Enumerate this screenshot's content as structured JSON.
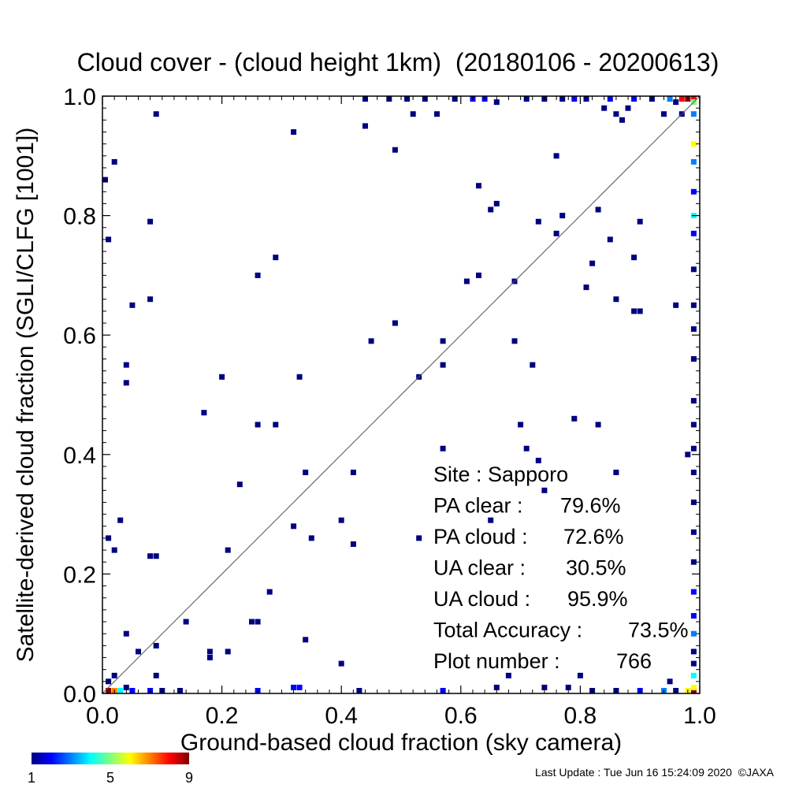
{
  "chart_data": {
    "type": "heatmap",
    "title": "Cloud cover - (cloud height 1km)  (20180106 - 20200613)",
    "xlabel": "Ground-based cloud fraction (sky camera)",
    "ylabel": "Satellite-derived cloud fraction (SGLI/CLFG [1001])",
    "xlim": [
      0,
      1
    ],
    "ylim": [
      0,
      1
    ],
    "x_ticks": [
      "0.0",
      "0.2",
      "0.4",
      "0.6",
      "0.8",
      "1.0"
    ],
    "y_ticks": [
      "0.0",
      "0.2",
      "0.4",
      "0.6",
      "0.8",
      "1.0"
    ],
    "grid": false,
    "diagonal_line": true,
    "colorbar": {
      "min": 1,
      "max": 9,
      "tick_labels": [
        "1",
        "5",
        "9"
      ],
      "colors": [
        "#000080",
        "#0000ff",
        "#0080ff",
        "#00ffff",
        "#80ff80",
        "#ffff00",
        "#ff8000",
        "#ff0000",
        "#800000"
      ]
    },
    "stats": [
      {
        "label": "Site : Sapporo",
        "value": ""
      },
      {
        "label": "PA clear :",
        "value": "79.6%"
      },
      {
        "label": "PA cloud :",
        "value": "72.6%"
      },
      {
        "label": "UA clear :",
        "value": "30.5%"
      },
      {
        "label": "UA cloud :",
        "value": "95.9%"
      },
      {
        "label": "Total Accuracy :",
        "value": "73.5%"
      },
      {
        "label": "Plot number :",
        "value": "766"
      }
    ],
    "cells": [
      [
        0.0,
        0.86,
        1
      ],
      [
        0.01,
        0.76,
        1
      ],
      [
        0.02,
        0.89,
        1
      ],
      [
        0.09,
        0.97,
        1
      ],
      [
        0.08,
        0.79,
        1
      ],
      [
        0.08,
        0.66,
        1
      ],
      [
        0.05,
        0.65,
        1
      ],
      [
        0.04,
        0.55,
        1
      ],
      [
        0.04,
        0.52,
        1
      ],
      [
        0.17,
        0.47,
        1
      ],
      [
        0.2,
        0.53,
        1
      ],
      [
        0.26,
        0.7,
        1
      ],
      [
        0.29,
        0.73,
        1
      ],
      [
        0.26,
        0.45,
        1
      ],
      [
        0.29,
        0.45,
        1
      ],
      [
        0.33,
        0.53,
        1
      ],
      [
        0.32,
        0.94,
        1
      ],
      [
        0.44,
        0.95,
        1
      ],
      [
        0.49,
        0.91,
        1
      ],
      [
        0.52,
        0.97,
        1
      ],
      [
        0.56,
        0.97,
        1
      ],
      [
        0.45,
        0.59,
        1
      ],
      [
        0.49,
        0.62,
        1
      ],
      [
        0.53,
        0.53,
        1
      ],
      [
        0.57,
        0.59,
        1
      ],
      [
        0.57,
        0.55,
        1
      ],
      [
        0.57,
        0.41,
        1
      ],
      [
        0.69,
        0.59,
        1
      ],
      [
        0.72,
        0.55,
        1
      ],
      [
        0.7,
        0.45,
        1
      ],
      [
        0.61,
        0.69,
        1
      ],
      [
        0.63,
        0.7,
        1
      ],
      [
        0.63,
        0.85,
        1
      ],
      [
        0.65,
        0.81,
        1
      ],
      [
        0.66,
        0.82,
        1
      ],
      [
        0.69,
        0.69,
        1
      ],
      [
        0.73,
        0.79,
        1
      ],
      [
        0.76,
        0.77,
        1
      ],
      [
        0.76,
        0.9,
        1
      ],
      [
        0.77,
        0.8,
        1
      ],
      [
        0.79,
        0.46,
        1
      ],
      [
        0.81,
        0.68,
        1
      ],
      [
        0.82,
        0.72,
        1
      ],
      [
        0.83,
        0.81,
        1
      ],
      [
        0.85,
        0.76,
        1
      ],
      [
        0.86,
        0.66,
        1
      ],
      [
        0.83,
        0.45,
        1
      ],
      [
        0.89,
        0.73,
        1
      ],
      [
        0.9,
        0.79,
        1
      ],
      [
        0.89,
        0.64,
        1
      ],
      [
        0.9,
        0.64,
        1
      ],
      [
        0.96,
        0.65,
        1
      ],
      [
        0.86,
        0.97,
        1
      ],
      [
        0.87,
        0.96,
        1
      ],
      [
        0.88,
        0.98,
        1
      ],
      [
        0.84,
        0.98,
        1
      ],
      [
        0.94,
        0.97,
        1
      ],
      [
        0.03,
        0.29,
        1
      ],
      [
        0.01,
        0.26,
        1
      ],
      [
        0.02,
        0.24,
        1
      ],
      [
        0.09,
        0.23,
        1
      ],
      [
        0.08,
        0.23,
        1
      ],
      [
        0.14,
        0.12,
        1
      ],
      [
        0.04,
        0.1,
        1
      ],
      [
        0.06,
        0.07,
        1
      ],
      [
        0.09,
        0.08,
        1
      ],
      [
        0.18,
        0.07,
        1
      ],
      [
        0.18,
        0.06,
        1
      ],
      [
        0.21,
        0.07,
        1
      ],
      [
        0.21,
        0.24,
        1
      ],
      [
        0.23,
        0.35,
        1
      ],
      [
        0.25,
        0.12,
        1
      ],
      [
        0.26,
        0.12,
        1
      ],
      [
        0.28,
        0.17,
        1
      ],
      [
        0.32,
        0.28,
        1
      ],
      [
        0.34,
        0.37,
        1
      ],
      [
        0.35,
        0.26,
        1
      ],
      [
        0.34,
        0.09,
        1
      ],
      [
        0.4,
        0.29,
        1
      ],
      [
        0.42,
        0.37,
        1
      ],
      [
        0.42,
        0.25,
        1
      ],
      [
        0.4,
        0.05,
        1
      ],
      [
        0.53,
        0.26,
        1
      ],
      [
        0.71,
        0.41,
        1
      ],
      [
        0.73,
        0.39,
        1
      ],
      [
        0.74,
        0.34,
        1
      ],
      [
        0.65,
        0.29,
        1
      ],
      [
        0.86,
        0.37,
        1
      ],
      [
        0.68,
        0.03,
        1
      ],
      [
        0.8,
        0.03,
        1
      ],
      [
        0.95,
        0.02,
        1
      ],
      [
        0.09,
        0.03,
        1
      ],
      [
        0.02,
        0.03,
        1
      ],
      [
        0.01,
        0.02,
        1
      ],
      [
        0.04,
        0.01,
        1
      ],
      [
        0.01,
        0.0,
        9
      ],
      [
        0.02,
        0.0,
        7
      ],
      [
        0.03,
        0.0,
        4
      ],
      [
        0.05,
        0.0,
        2
      ],
      [
        0.08,
        0.0,
        2
      ],
      [
        0.1,
        0.0,
        1
      ],
      [
        0.13,
        0.0,
        1
      ],
      [
        0.26,
        0.0,
        2
      ],
      [
        0.32,
        0.01,
        2
      ],
      [
        0.33,
        0.01,
        2
      ],
      [
        0.43,
        0.0,
        1
      ],
      [
        0.57,
        0.0,
        2
      ],
      [
        0.66,
        0.01,
        1
      ],
      [
        0.74,
        0.01,
        1
      ],
      [
        0.78,
        0.01,
        1
      ],
      [
        0.82,
        0.0,
        1
      ],
      [
        0.86,
        0.0,
        1
      ],
      [
        0.9,
        0.0,
        2
      ],
      [
        0.94,
        0.0,
        3
      ],
      [
        0.96,
        0.0,
        1
      ],
      [
        0.98,
        0.0,
        6
      ],
      [
        0.99,
        0.0,
        9
      ],
      [
        0.44,
        1.0,
        1
      ],
      [
        0.48,
        1.0,
        1
      ],
      [
        0.51,
        1.0,
        1
      ],
      [
        0.54,
        1.0,
        1
      ],
      [
        0.59,
        1.0,
        1
      ],
      [
        0.62,
        1.0,
        2
      ],
      [
        0.64,
        1.0,
        2
      ],
      [
        0.66,
        0.99,
        1
      ],
      [
        0.71,
        1.0,
        1
      ],
      [
        0.74,
        1.0,
        1
      ],
      [
        0.77,
        1.0,
        1
      ],
      [
        0.79,
        1.0,
        2
      ],
      [
        0.81,
        1.0,
        1
      ],
      [
        0.85,
        1.0,
        2
      ],
      [
        0.89,
        1.0,
        2
      ],
      [
        0.92,
        1.0,
        1
      ],
      [
        0.95,
        1.0,
        3
      ],
      [
        0.97,
        1.0,
        8
      ],
      [
        0.98,
        1.0,
        9
      ],
      [
        0.99,
        1.0,
        8
      ],
      [
        0.99,
        0.99,
        5
      ],
      [
        0.99,
        0.97,
        3
      ],
      [
        0.99,
        0.92,
        6
      ],
      [
        0.99,
        0.89,
        3
      ],
      [
        0.99,
        0.84,
        2
      ],
      [
        0.99,
        0.8,
        4
      ],
      [
        0.99,
        0.77,
        2
      ],
      [
        0.99,
        0.71,
        1
      ],
      [
        0.99,
        0.65,
        1
      ],
      [
        0.99,
        0.61,
        1
      ],
      [
        0.99,
        0.56,
        1
      ],
      [
        0.99,
        0.49,
        1
      ],
      [
        0.99,
        0.45,
        1
      ],
      [
        0.99,
        0.41,
        1
      ],
      [
        0.98,
        0.4,
        1
      ],
      [
        0.99,
        0.37,
        1
      ],
      [
        0.99,
        0.32,
        1
      ],
      [
        0.99,
        0.27,
        1
      ],
      [
        0.99,
        0.22,
        1
      ],
      [
        0.99,
        0.17,
        2
      ],
      [
        0.99,
        0.13,
        2
      ],
      [
        0.99,
        0.1,
        3
      ],
      [
        0.99,
        0.07,
        1
      ],
      [
        0.99,
        0.05,
        1
      ],
      [
        0.99,
        0.03,
        4
      ],
      [
        0.99,
        0.01,
        6
      ],
      [
        0.97,
        0.97,
        1
      ],
      [
        0.96,
        0.99,
        1
      ]
    ]
  },
  "footer": {
    "last_update": "Last Update : Tue Jun 16 15:24:09 2020  ©JAXA"
  }
}
